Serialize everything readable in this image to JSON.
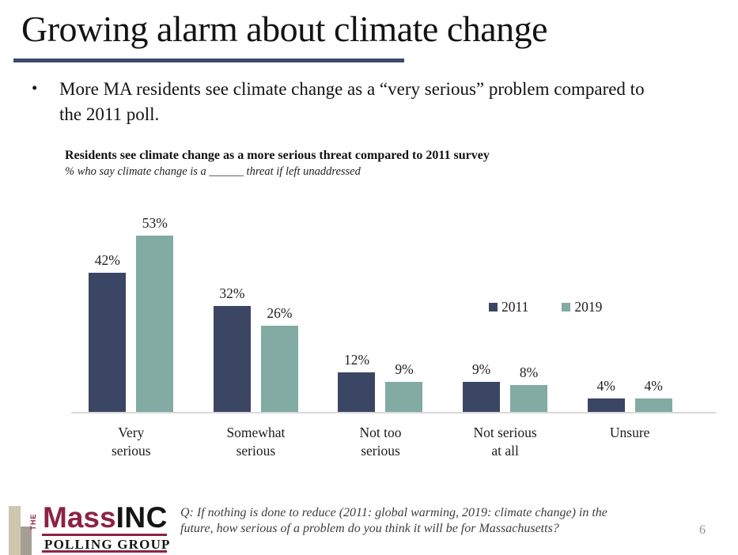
{
  "slide": {
    "title": "Growing alarm about climate change",
    "bullet": "More MA residents see climate change as a “very serious” problem compared to the 2011 poll.",
    "page_number": "6"
  },
  "chart": {
    "title": "Residents see climate change as a more serious threat compared to 2011 survey",
    "subtitle": "% who say climate change is a ______ threat if left unaddressed"
  },
  "chart_data": {
    "type": "bar",
    "categories": [
      "Very serious",
      "Somewhat serious",
      "Not too serious",
      "Not serious at all",
      "Unsure"
    ],
    "categories_wrapped": [
      [
        "Very",
        "serious"
      ],
      [
        "Somewhat",
        "serious"
      ],
      [
        "Not too",
        "serious"
      ],
      [
        "Not serious",
        "at all"
      ],
      [
        "Unsure"
      ]
    ],
    "series": [
      {
        "name": "2011",
        "color": "#3a4663",
        "values": [
          42,
          32,
          12,
          9,
          4
        ]
      },
      {
        "name": "2019",
        "color": "#82aba4",
        "values": [
          53,
          26,
          9,
          8,
          4
        ]
      }
    ],
    "value_suffix": "%",
    "ylim": [
      0,
      60
    ],
    "grid": false,
    "legend_position": "center-right",
    "title": "Residents see climate change as a more serious threat compared to 2011 survey",
    "xlabel": "",
    "ylabel": ""
  },
  "footer": {
    "question": "Q: If nothing is done to reduce (2011: global warming, 2019: climate change) in the future, how serious of a problem do you think it will be for Massachusetts?",
    "logo": {
      "the": "THE",
      "mass": "Mass",
      "inc": "INC",
      "polling_group": "POLLING GROUP"
    }
  },
  "colors": {
    "navy": "#3a4663",
    "sage": "#82aba4",
    "maroon": "#8c2342",
    "title_rule": "#3d4a6b",
    "axis_line": "#d9d9d9",
    "logo_beige": "#cfc6b0",
    "logo_gray": "#a59f93"
  }
}
